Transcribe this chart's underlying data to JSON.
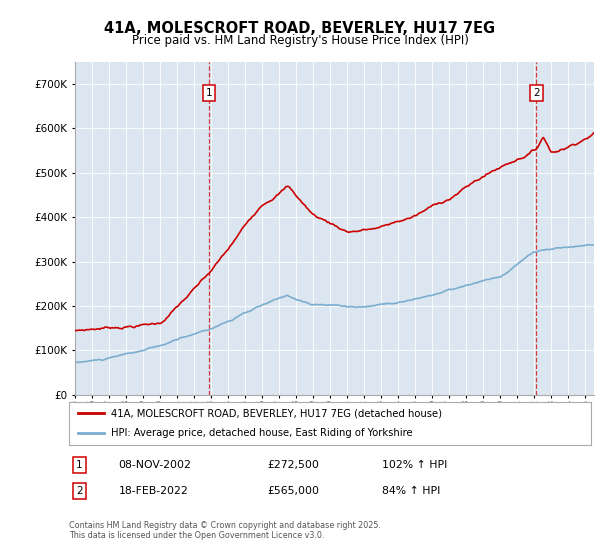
{
  "title": "41A, MOLESCROFT ROAD, BEVERLEY, HU17 7EG",
  "subtitle": "Price paid vs. HM Land Registry's House Price Index (HPI)",
  "legend_line1": "41A, MOLESCROFT ROAD, BEVERLEY, HU17 7EG (detached house)",
  "legend_line2": "HPI: Average price, detached house, East Riding of Yorkshire",
  "annotation1_date": "08-NOV-2002",
  "annotation1_price": "£272,500",
  "annotation1_hpi": "102% ↑ HPI",
  "annotation1_year": 2002.86,
  "annotation1_value": 272500,
  "annotation2_date": "18-FEB-2022",
  "annotation2_price": "£565,000",
  "annotation2_hpi": "84% ↑ HPI",
  "annotation2_year": 2022.12,
  "annotation2_value": 565000,
  "house_color": "#cc0000",
  "hpi_color": "#7aadcf",
  "plot_bg_color": "#dce6f1",
  "footer_text": "Contains HM Land Registry data © Crown copyright and database right 2025.\nThis data is licensed under the Open Government Licence v3.0.",
  "ylim": [
    0,
    750000
  ],
  "xlim_start": 1995,
  "xlim_end": 2025.5,
  "yticks": [
    0,
    100000,
    200000,
    300000,
    400000,
    500000,
    600000,
    700000
  ],
  "ytick_labels": [
    "£0",
    "£100K",
    "£200K",
    "£300K",
    "£400K",
    "£500K",
    "£600K",
    "£700K"
  ]
}
